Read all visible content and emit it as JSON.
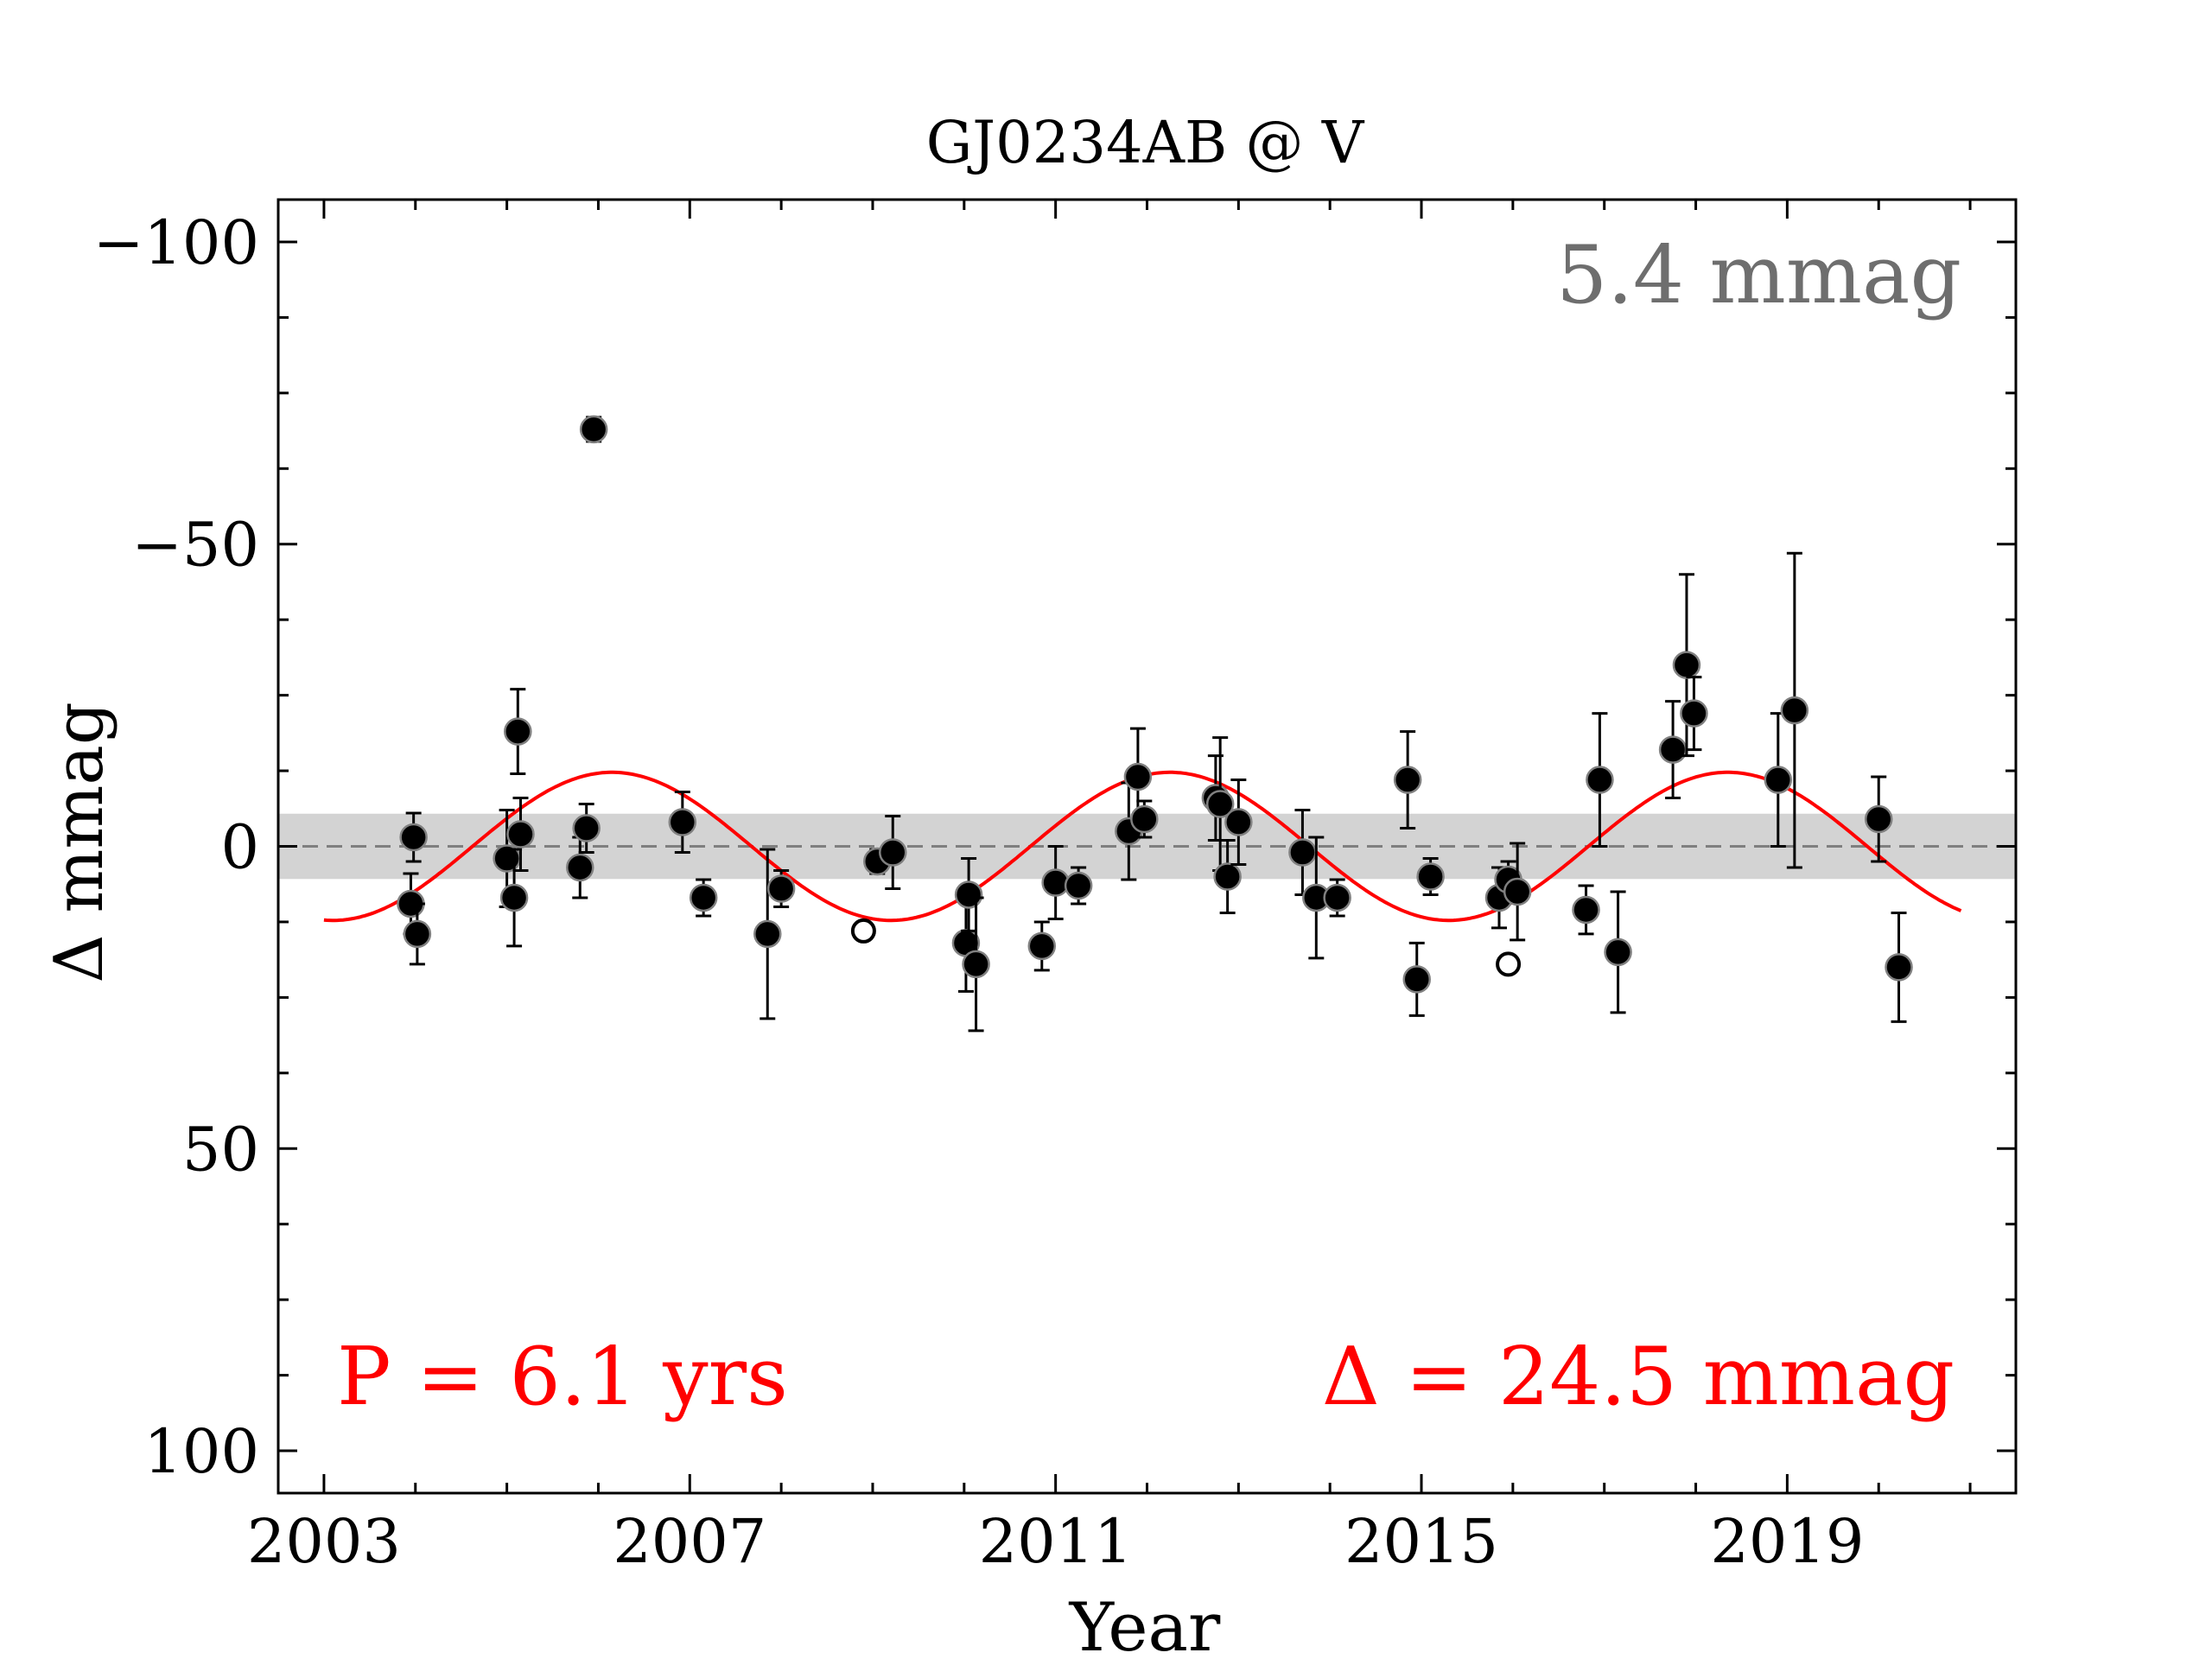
{
  "chart_data": {
    "type": "scatter",
    "title": "GJ0234AB @ V",
    "xlabel": "Year",
    "ylabel": "Δ  mmag",
    "xlim": [
      2002.5,
      2021.5
    ],
    "ylim": [
      107,
      -107
    ],
    "y_inverted": true,
    "x_ticks": [
      2003,
      2007,
      2011,
      2015,
      2019
    ],
    "y_ticks": [
      -100,
      -50,
      0,
      50,
      100
    ],
    "y_tick_labels": [
      "−100",
      "−50",
      "0",
      "50",
      "100"
    ],
    "grid": false,
    "band": {
      "y0": -5.4,
      "y1": 5.4,
      "color": "#d3d3d3"
    },
    "reference_line": {
      "y": 0,
      "style": "dashed",
      "color": "#7f7f7f"
    },
    "fit": {
      "type": "sinusoid",
      "period_years": 6.1,
      "amplitude_mmag": 12.25,
      "peak_epoch": 2006.15,
      "color": "#ff0000",
      "x_range": [
        2003.0,
        2020.9
      ]
    },
    "annotations": {
      "rms": "5.4 mmag",
      "period": "P = 6.1 yrs",
      "amplitude": "Δ = 24.5 mmag"
    },
    "colors": {
      "rms": "#6e6e6e",
      "fit": "#ff0000",
      "points": "#000000"
    },
    "series": [
      {
        "marker": "filled",
        "points": [
          {
            "x": 2003.95,
            "y": 9.5,
            "err": 5
          },
          {
            "x": 2003.98,
            "y": -1.5,
            "err": 4
          },
          {
            "x": 2004.02,
            "y": 14.5,
            "err": 5
          },
          {
            "x": 2005.0,
            "y": 2.0,
            "err": 8
          },
          {
            "x": 2005.08,
            "y": 8.5,
            "err": 8
          },
          {
            "x": 2005.12,
            "y": -19.0,
            "err": 7
          },
          {
            "x": 2005.15,
            "y": -2.0,
            "err": 6
          },
          {
            "x": 2005.8,
            "y": 3.5,
            "err": 5
          },
          {
            "x": 2005.87,
            "y": -3.0,
            "err": 4
          },
          {
            "x": 2005.95,
            "y": -69.0,
            "err": 2
          },
          {
            "x": 2006.92,
            "y": -4.0,
            "err": 5
          },
          {
            "x": 2007.15,
            "y": 8.5,
            "err": 3
          },
          {
            "x": 2007.85,
            "y": 14.5,
            "err": 14
          },
          {
            "x": 2008.0,
            "y": 7.0,
            "err": 3
          },
          {
            "x": 2009.05,
            "y": 2.5,
            "err": 2
          },
          {
            "x": 2009.22,
            "y": 1.0,
            "err": 6
          },
          {
            "x": 2010.02,
            "y": 16.0,
            "err": 8
          },
          {
            "x": 2010.05,
            "y": 8.0,
            "err": 6
          },
          {
            "x": 2010.13,
            "y": 19.5,
            "err": 11
          },
          {
            "x": 2010.85,
            "y": 16.5,
            "err": 4
          },
          {
            "x": 2011.0,
            "y": 6.0,
            "err": 6
          },
          {
            "x": 2011.25,
            "y": 6.5,
            "err": 3
          },
          {
            "x": 2011.8,
            "y": -2.5,
            "err": 8
          },
          {
            "x": 2011.9,
            "y": -11.5,
            "err": 8
          },
          {
            "x": 2011.97,
            "y": -4.5,
            "err": 3
          },
          {
            "x": 2012.75,
            "y": -8.0,
            "err": 7
          },
          {
            "x": 2012.8,
            "y": -7.0,
            "err": 11
          },
          {
            "x": 2012.88,
            "y": 5.0,
            "err": 6
          },
          {
            "x": 2013.0,
            "y": -4.0,
            "err": 7
          },
          {
            "x": 2013.7,
            "y": 1.0,
            "err": 7
          },
          {
            "x": 2013.85,
            "y": 8.5,
            "err": 10
          },
          {
            "x": 2014.08,
            "y": 8.5,
            "err": 3
          },
          {
            "x": 2014.85,
            "y": -11.0,
            "err": 8
          },
          {
            "x": 2014.95,
            "y": 22.0,
            "err": 6
          },
          {
            "x": 2015.1,
            "y": 5.0,
            "err": 3
          },
          {
            "x": 2015.85,
            "y": 8.5,
            "err": 5
          },
          {
            "x": 2015.95,
            "y": 5.5,
            "err": 3
          },
          {
            "x": 2016.05,
            "y": 7.5,
            "err": 8
          },
          {
            "x": 2016.8,
            "y": 10.5,
            "err": 4
          },
          {
            "x": 2016.95,
            "y": -11.0,
            "err": 11
          },
          {
            "x": 2017.15,
            "y": 17.5,
            "err": 10
          },
          {
            "x": 2017.75,
            "y": -16.0,
            "err": 8
          },
          {
            "x": 2017.9,
            "y": -30.0,
            "err": 15
          },
          {
            "x": 2017.98,
            "y": -22.0,
            "err": 6
          },
          {
            "x": 2018.9,
            "y": -11.0,
            "err": 11
          },
          {
            "x": 2019.08,
            "y": -22.5,
            "err": 26
          },
          {
            "x": 2020.0,
            "y": -4.5,
            "err": 7
          },
          {
            "x": 2020.22,
            "y": 20.0,
            "err": 9
          }
        ]
      },
      {
        "marker": "open",
        "points": [
          {
            "x": 2008.9,
            "y": 14.0
          },
          {
            "x": 2015.95,
            "y": 19.5
          }
        ]
      }
    ]
  }
}
